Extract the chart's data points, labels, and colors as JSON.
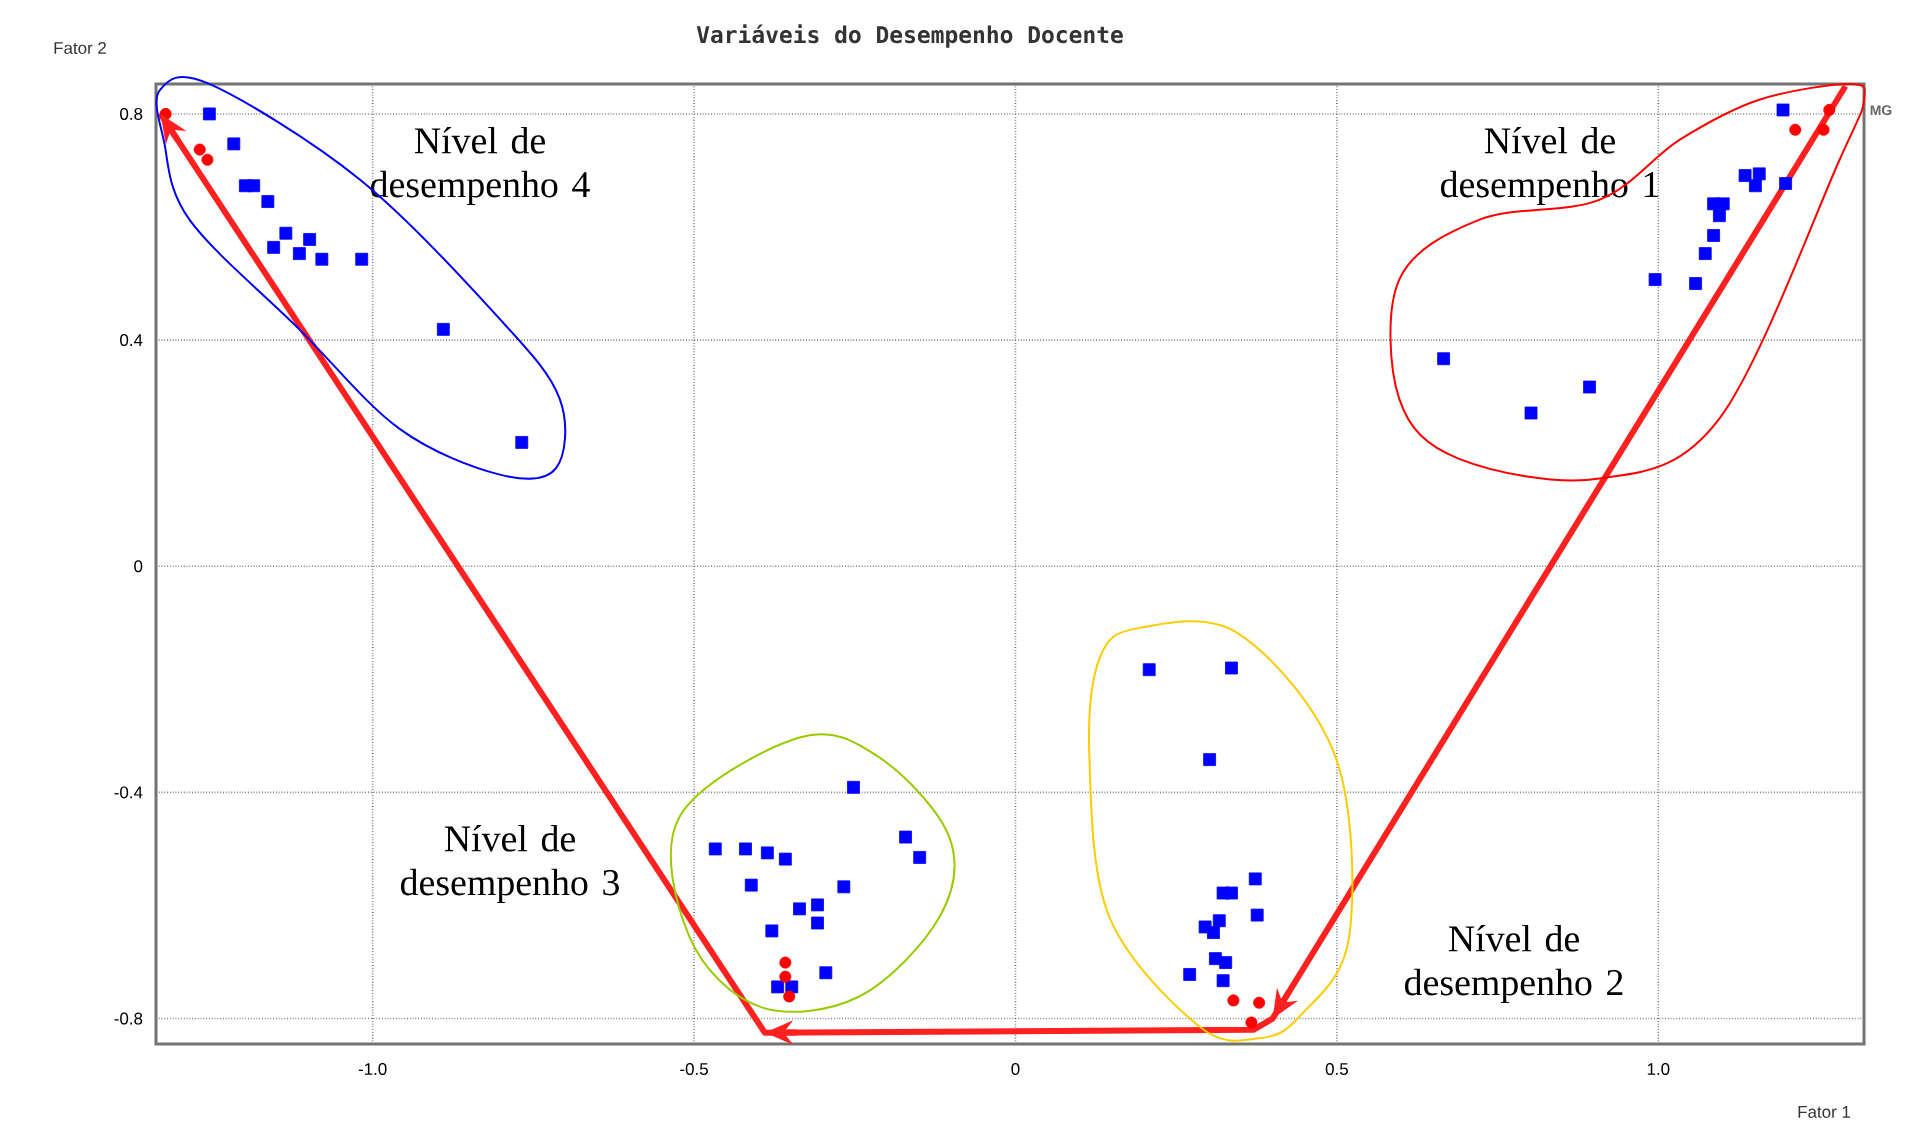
{
  "chart_data": {
    "type": "scatter",
    "title": "Variáveis do Desempenho Docente",
    "xlabel": "Fator 1",
    "ylabel": "Fator 2",
    "xlim": [
      -1.337,
      1.32
    ],
    "ylim": [
      -0.845,
      0.853
    ],
    "xticks": [
      {
        "value": -1,
        "label": "-1.0"
      },
      -0.5,
      0,
      0.5,
      {
        "value": 1,
        "label": "1.0"
      }
    ],
    "yticks": [
      -0.8,
      -0.4,
      0,
      0.4,
      0.8
    ],
    "grid": true,
    "annotations": [
      "Nível de desempenho 4",
      "Nível de desempenho 1",
      "Nível de desempenho 3",
      "Nível de desempenho 2",
      {
        "text": "MG",
        "x": 1.291,
        "y": 0.849
      }
    ],
    "series": [
      {
        "type": "line",
        "color": "#ff2020",
        "marker": "none",
        "line_style": "solid",
        "x": [
          1.291,
          0.4,
          0.37,
          -0.39,
          -1.33
        ],
        "values": [
          0.849,
          -0.8,
          -0.82,
          -0.825,
          0.8
        ]
      },
      {
        "color": "#0000ff",
        "marker": "square",
        "x": [
          -1.254,
          -1.216,
          -1.198,
          -1.185,
          -1.163,
          -1.135,
          -1.154,
          -1.114,
          -1.098,
          -1.079,
          -1.017,
          -0.89,
          -0.768,
          1.194,
          1.135,
          1.157,
          1.151,
          1.198,
          1.086,
          1.101,
          1.095,
          1.086,
          1.073,
          0.995,
          1.058,
          0.666,
          0.893,
          0.802,
          -0.252,
          -0.467,
          -0.42,
          -0.386,
          -0.358,
          -0.411,
          -0.267,
          -0.171,
          -0.149,
          -0.336,
          -0.308,
          -0.308,
          -0.379,
          -0.295,
          -0.37,
          -0.348,
          0.208,
          0.336,
          0.302,
          0.373,
          0.323,
          0.336,
          0.376,
          0.317,
          0.295,
          0.308,
          0.311,
          0.327,
          0.271,
          0.323
        ],
        "values": [
          0.8,
          0.747,
          0.673,
          0.673,
          0.645,
          0.589,
          0.564,
          0.553,
          0.578,
          0.543,
          0.543,
          0.419,
          0.219,
          0.807,
          0.691,
          0.694,
          0.673,
          0.677,
          0.641,
          0.641,
          0.62,
          0.585,
          0.553,
          0.507,
          0.5,
          0.367,
          0.317,
          0.271,
          -0.391,
          -0.5,
          -0.5,
          -0.507,
          -0.518,
          -0.564,
          -0.567,
          -0.479,
          -0.515,
          -0.606,
          -0.599,
          -0.631,
          -0.645,
          -0.719,
          -0.744,
          -0.744,
          -0.183,
          -0.18,
          -0.342,
          -0.553,
          -0.578,
          -0.578,
          -0.617,
          -0.627,
          -0.638,
          -0.648,
          -0.694,
          -0.701,
          -0.722,
          -0.733
        ]
      },
      {
        "color": "#ff0000",
        "marker": "circle",
        "x": [
          -1.322,
          -1.269,
          -1.257,
          1.266,
          1.213,
          1.257,
          -0.358,
          -0.358,
          -0.352,
          0.339,
          0.379,
          0.367
        ],
        "values": [
          0.8,
          0.737,
          0.719,
          0.807,
          0.772,
          0.772,
          -0.701,
          -0.726,
          -0.761,
          -0.768,
          -0.772,
          -0.807
        ]
      }
    ]
  }
}
